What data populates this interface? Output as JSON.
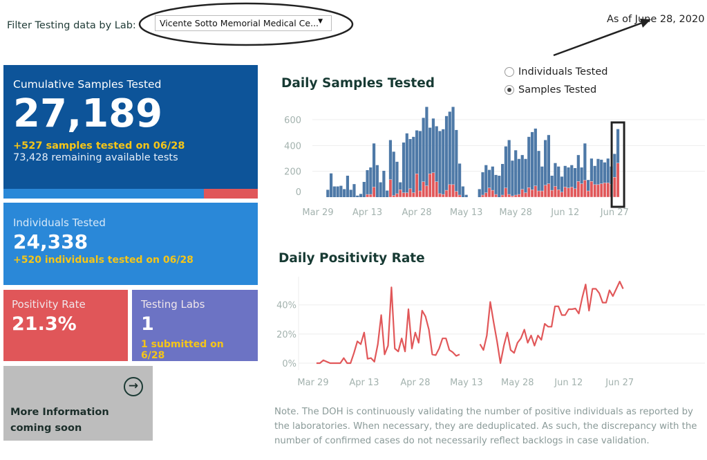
{
  "filter": {
    "label": "Filter Testing data by Lab:",
    "selected": "Vicente Sotto Memorial Medical Ce...",
    "caret": "▼"
  },
  "as_of": "As of June 28, 2020",
  "cards": {
    "cumulative": {
      "title": "Cumulative Samples Tested",
      "value": "27,189",
      "sub1": "+527 samples tested on 06/28",
      "sub2": "73,428 remaining available tests",
      "used_fraction": 0.789,
      "colors": {
        "bg": "#0d5499",
        "used": "#2a88d8",
        "remaining": "#e05659"
      }
    },
    "individuals": {
      "title": "Individuals Tested",
      "value": "24,338",
      "sub1": "+520  individuals  tested on 06/28",
      "color": "#2a88d8"
    },
    "positivity": {
      "title": "Positivity Rate",
      "value": "21.3%",
      "color": "#e05659"
    },
    "labs": {
      "title": "Testing Labs",
      "value": "1",
      "sub1": "1 submitted on 6/28",
      "color": "#6c73c4"
    },
    "more": {
      "title": "More Information",
      "title2": "coming soon",
      "icon": "arrow-right-circle-icon"
    }
  },
  "toggle": {
    "options": [
      {
        "label": "Individuals Tested",
        "selected": false
      },
      {
        "label": "Samples Tested",
        "selected": true
      }
    ]
  },
  "note": "Note. The DOH is continuously validating the number of positive individuals as reported by the laboratories. When necessary, they are deduplicated. As such, the discrepancy with the number of confirmed cases do not necessarily reflect backlogs in case validation.",
  "chart_data": [
    {
      "type": "bar",
      "stacked": true,
      "title": "Daily Samples Tested",
      "y_ticks": [
        "600",
        "400",
        "200",
        "0"
      ],
      "x_ticks": [
        "Mar 29",
        "Apr 13",
        "Apr 28",
        "May 13",
        "May 28",
        "Jun 12",
        "Jun 27"
      ],
      "ylim": [
        0,
        700
      ],
      "grid": true,
      "highlighted": "2020-06-28",
      "colors": {
        "total": "#4e79a7",
        "positive": "#e15759"
      },
      "points": [
        [
          "2020-04-01",
          57,
          0
        ],
        [
          "2020-04-02",
          184,
          0
        ],
        [
          "2020-04-03",
          83,
          0
        ],
        [
          "2020-04-04",
          83,
          0
        ],
        [
          "2020-04-05",
          88,
          0
        ],
        [
          "2020-04-06",
          62,
          0
        ],
        [
          "2020-04-07",
          166,
          0
        ],
        [
          "2020-04-08",
          57,
          0
        ],
        [
          "2020-04-09",
          101,
          0
        ],
        [
          "2020-04-10",
          12,
          0
        ],
        [
          "2020-04-11",
          25,
          0
        ],
        [
          "2020-04-12",
          118,
          0
        ],
        [
          "2020-04-13",
          209,
          21
        ],
        [
          "2020-04-14",
          230,
          21
        ],
        [
          "2020-04-15",
          416,
          78
        ],
        [
          "2020-04-16",
          248,
          0
        ],
        [
          "2020-04-17",
          115,
          0
        ],
        [
          "2020-04-18",
          204,
          0
        ],
        [
          "2020-04-19",
          51,
          0
        ],
        [
          "2020-04-20",
          442,
          136
        ],
        [
          "2020-04-21",
          352,
          12
        ],
        [
          "2020-04-22",
          274,
          27
        ],
        [
          "2020-04-23",
          115,
          57
        ],
        [
          "2020-04-24",
          423,
          34
        ],
        [
          "2020-04-25",
          494,
          34
        ],
        [
          "2020-04-26",
          450,
          65
        ],
        [
          "2020-04-27",
          467,
          34
        ],
        [
          "2020-04-28",
          517,
          181
        ],
        [
          "2020-04-29",
          512,
          48
        ],
        [
          "2020-04-30",
          614,
          119
        ],
        [
          "2020-05-01",
          699,
          87
        ],
        [
          "2020-05-02",
          538,
          181
        ],
        [
          "2020-05-03",
          609,
          189
        ],
        [
          "2020-05-04",
          549,
          119
        ],
        [
          "2020-05-05",
          512,
          27
        ],
        [
          "2020-05-06",
          526,
          21
        ],
        [
          "2020-05-07",
          628,
          53
        ],
        [
          "2020-05-08",
          662,
          97
        ],
        [
          "2020-05-09",
          699,
          97
        ],
        [
          "2020-05-10",
          520,
          44
        ],
        [
          "2020-05-11",
          260,
          16
        ],
        [
          "2020-05-12",
          83,
          0
        ],
        [
          "2020-05-13",
          18,
          0
        ],
        [
          "2020-05-17",
          62,
          0
        ],
        [
          "2020-05-18",
          193,
          16
        ],
        [
          "2020-05-19",
          248,
          34
        ],
        [
          "2020-05-20",
          211,
          71
        ],
        [
          "2020-05-21",
          237,
          53
        ],
        [
          "2020-05-22",
          172,
          21
        ],
        [
          "2020-05-23",
          166,
          0
        ],
        [
          "2020-05-24",
          257,
          16
        ],
        [
          "2020-05-25",
          393,
          71
        ],
        [
          "2020-05-26",
          442,
          21
        ],
        [
          "2020-05-27",
          283,
          9
        ],
        [
          "2020-05-28",
          363,
          16
        ],
        [
          "2020-05-29",
          296,
          21
        ],
        [
          "2020-05-30",
          326,
          60
        ],
        [
          "2020-05-31",
          296,
          34
        ],
        [
          "2020-06-01",
          467,
          74
        ],
        [
          "2020-06-02",
          504,
          57
        ],
        [
          "2020-06-03",
          531,
          87
        ],
        [
          "2020-06-04",
          358,
          48
        ],
        [
          "2020-06-05",
          237,
          48
        ],
        [
          "2020-06-06",
          442,
          92
        ],
        [
          "2020-06-07",
          481,
          104
        ],
        [
          "2020-06-08",
          166,
          53
        ],
        [
          "2020-06-09",
          264,
          83
        ],
        [
          "2020-06-10",
          237,
          57
        ],
        [
          "2020-06-11",
          159,
          39
        ],
        [
          "2020-06-12",
          242,
          78
        ],
        [
          "2020-06-13",
          230,
          71
        ],
        [
          "2020-06-14",
          248,
          78
        ],
        [
          "2020-06-15",
          225,
          65
        ],
        [
          "2020-06-16",
          326,
          122
        ],
        [
          "2020-06-17",
          230,
          104
        ],
        [
          "2020-06-18",
          416,
          131
        ],
        [
          "2020-06-19",
          133,
          48
        ],
        [
          "2020-06-20",
          299,
          122
        ],
        [
          "2020-06-21",
          242,
          97
        ],
        [
          "2020-06-22",
          296,
          97
        ],
        [
          "2020-06-23",
          290,
          104
        ],
        [
          "2020-06-24",
          269,
          110
        ],
        [
          "2020-06-25",
          299,
          110
        ],
        [
          "2020-06-26",
          237,
          101
        ],
        [
          "2020-06-27",
          335,
          154
        ],
        [
          "2020-06-28",
          527,
          264
        ]
      ]
    },
    {
      "type": "line",
      "title": "Daily Positivity Rate",
      "y_ticks": [
        "40%",
        "20%",
        "0%"
      ],
      "x_ticks": [
        "Mar 29",
        "Apr 13",
        "Apr 28",
        "May 13",
        "May 28",
        "Jun 12",
        "Jun 27"
      ],
      "ylim": [
        0,
        60
      ],
      "grid": true,
      "color": "#e15759",
      "segments": [
        [
          [
            "2020-03-30",
            0
          ],
          [
            "2020-03-31",
            0
          ],
          [
            "2020-04-01",
            2
          ],
          [
            "2020-04-02",
            1
          ],
          [
            "2020-04-03",
            0
          ],
          [
            "2020-04-04",
            0
          ],
          [
            "2020-04-05",
            0
          ],
          [
            "2020-04-06",
            0
          ],
          [
            "2020-04-07",
            3.5
          ],
          [
            "2020-04-08",
            0
          ],
          [
            "2020-04-09",
            0
          ],
          [
            "2020-04-10",
            7
          ],
          [
            "2020-04-11",
            15
          ],
          [
            "2020-04-12",
            13
          ],
          [
            "2020-04-13",
            21
          ],
          [
            "2020-04-14",
            3
          ],
          [
            "2020-04-15",
            3.5
          ],
          [
            "2020-04-16",
            1
          ],
          [
            "2020-04-17",
            13
          ],
          [
            "2020-04-18",
            33
          ],
          [
            "2020-04-19",
            6
          ],
          [
            "2020-04-20",
            12
          ],
          [
            "2020-04-21",
            52
          ],
          [
            "2020-04-22",
            10
          ],
          [
            "2020-04-23",
            8
          ],
          [
            "2020-04-24",
            17
          ],
          [
            "2020-04-25",
            8
          ],
          [
            "2020-04-26",
            37
          ],
          [
            "2020-04-27",
            10
          ],
          [
            "2020-04-28",
            21
          ],
          [
            "2020-04-29",
            14
          ],
          [
            "2020-04-30",
            36
          ],
          [
            "2020-05-01",
            32
          ],
          [
            "2020-05-02",
            23
          ],
          [
            "2020-05-03",
            6
          ],
          [
            "2020-05-04",
            5.5
          ],
          [
            "2020-05-05",
            10
          ],
          [
            "2020-05-06",
            17
          ],
          [
            "2020-05-07",
            17
          ],
          [
            "2020-05-08",
            9
          ],
          [
            "2020-05-09",
            7.5
          ],
          [
            "2020-05-10",
            5
          ],
          [
            "2020-05-11",
            6
          ]
        ],
        [
          [
            "2020-05-17",
            13
          ],
          [
            "2020-05-18",
            9
          ],
          [
            "2020-05-19",
            19
          ],
          [
            "2020-05-20",
            42
          ],
          [
            "2020-05-21",
            28
          ],
          [
            "2020-05-22",
            15
          ],
          [
            "2020-05-23",
            0
          ],
          [
            "2020-05-24",
            12
          ],
          [
            "2020-05-25",
            21
          ],
          [
            "2020-05-26",
            9
          ],
          [
            "2020-05-27",
            7
          ],
          [
            "2020-05-28",
            14
          ],
          [
            "2020-05-29",
            17
          ],
          [
            "2020-05-30",
            23
          ],
          [
            "2020-05-31",
            14
          ],
          [
            "2020-06-01",
            19
          ],
          [
            "2020-06-02",
            12
          ],
          [
            "2020-06-03",
            19
          ],
          [
            "2020-06-04",
            16
          ],
          [
            "2020-06-05",
            27
          ],
          [
            "2020-06-06",
            25
          ],
          [
            "2020-06-07",
            25
          ],
          [
            "2020-06-08",
            39
          ],
          [
            "2020-06-09",
            39
          ],
          [
            "2020-06-10",
            33
          ],
          [
            "2020-06-11",
            33
          ],
          [
            "2020-06-12",
            37
          ],
          [
            "2020-06-13",
            37
          ],
          [
            "2020-06-14",
            37.5
          ],
          [
            "2020-06-15",
            34
          ],
          [
            "2020-06-16",
            45
          ],
          [
            "2020-06-17",
            54
          ],
          [
            "2020-06-18",
            36
          ],
          [
            "2020-06-19",
            51
          ],
          [
            "2020-06-20",
            51
          ],
          [
            "2020-06-21",
            48
          ],
          [
            "2020-06-22",
            41.5
          ],
          [
            "2020-06-23",
            41.5
          ],
          [
            "2020-06-24",
            50
          ],
          [
            "2020-06-25",
            46
          ],
          [
            "2020-06-26",
            51
          ],
          [
            "2020-06-27",
            56
          ],
          [
            "2020-06-28",
            51
          ]
        ]
      ]
    }
  ]
}
